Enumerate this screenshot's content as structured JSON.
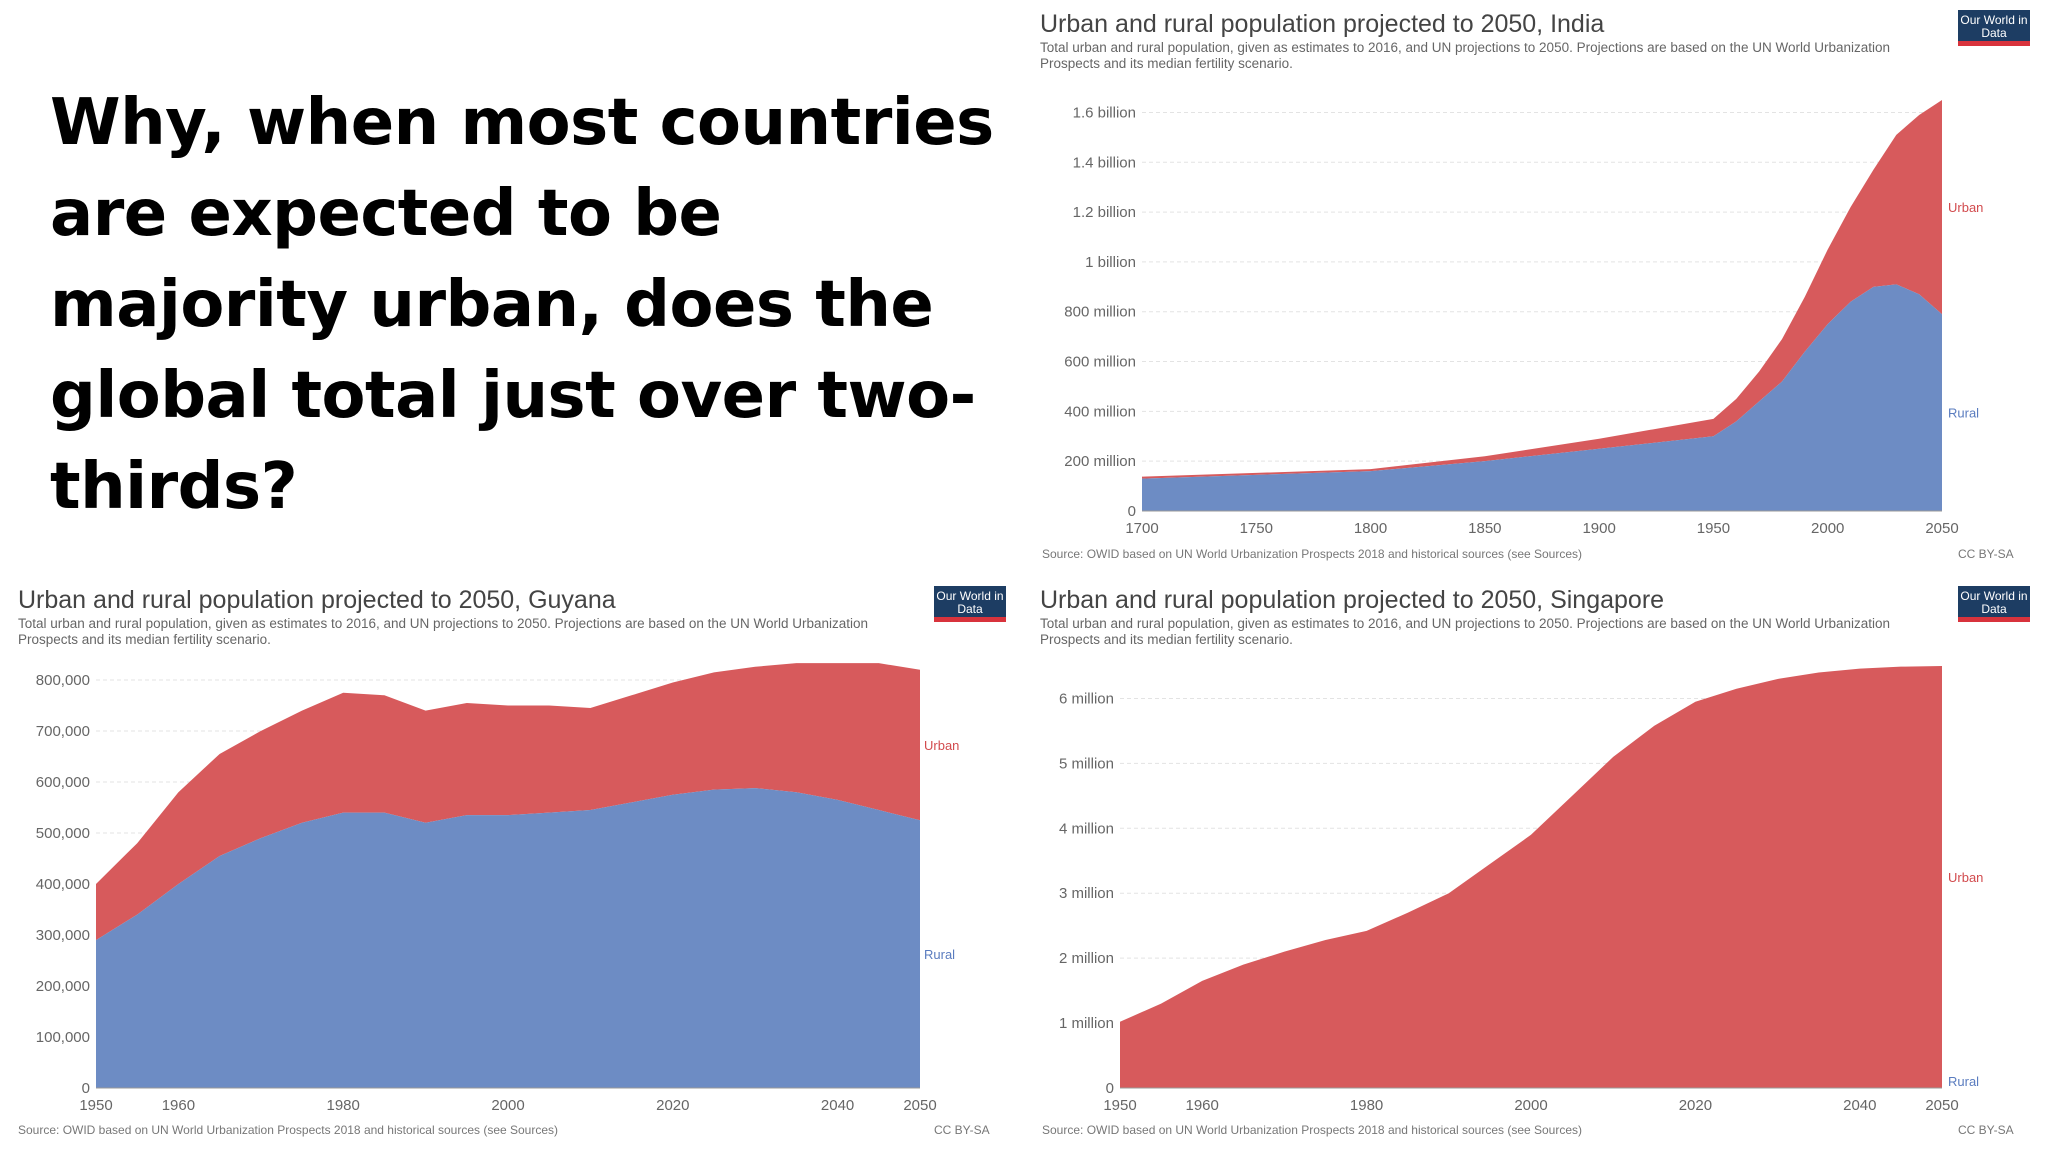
{
  "question": "Why, when most countries are expected to be majority urban, does the global total just over two-thirds?",
  "colors": {
    "urban": "#d75a5c",
    "rural": "#6d8cc4",
    "grid": "#e3e3e3",
    "axis": "#666666",
    "label_urban": "#d24b4e",
    "label_rural": "#5a7cbf"
  },
  "chart_data": [
    {
      "type": "area",
      "stacked": true,
      "country": "India",
      "title": "Urban and rural population projected to 2050, India",
      "subtitle": "Total urban and rural population, given as estimates to 2016, and UN projections to 2050. Projections are based on the UN World Urbanization Prospects and its median fertility scenario.",
      "logo": "Our World in Data",
      "source": "Source: OWID based on UN World Urbanization Prospects 2018 and historical sources (see Sources)",
      "license": "CC BY-SA",
      "xlim": [
        1700,
        2050
      ],
      "ylim": [
        0,
        1650000000
      ],
      "x_ticks": [
        1700,
        1750,
        1800,
        1850,
        1900,
        1950,
        2000,
        2050
      ],
      "y_ticks": [
        {
          "value": 0,
          "label": "0"
        },
        {
          "value": 200000000,
          "label": "200 million"
        },
        {
          "value": 400000000,
          "label": "400 million"
        },
        {
          "value": 600000000,
          "label": "600 million"
        },
        {
          "value": 800000000,
          "label": "800 million"
        },
        {
          "value": 1000000000,
          "label": "1 billion"
        },
        {
          "value": 1200000000,
          "label": "1.2 billion"
        },
        {
          "value": 1400000000,
          "label": "1.4 billion"
        },
        {
          "value": 1600000000,
          "label": "1.6 billion"
        }
      ],
      "x": [
        1700,
        1750,
        1800,
        1850,
        1900,
        1950,
        1960,
        1970,
        1980,
        1990,
        2000,
        2010,
        2020,
        2030,
        2040,
        2050
      ],
      "series": [
        {
          "name": "Rural",
          "values": [
            130000000,
            145000000,
            160000000,
            200000000,
            250000000,
            300000000,
            360000000,
            440000000,
            520000000,
            640000000,
            750000000,
            840000000,
            900000000,
            910000000,
            870000000,
            790000000
          ]
        },
        {
          "name": "Urban",
          "values": [
            8000000,
            8000000,
            8000000,
            20000000,
            40000000,
            70000000,
            90000000,
            120000000,
            170000000,
            220000000,
            300000000,
            380000000,
            470000000,
            600000000,
            720000000,
            860000000
          ]
        }
      ],
      "labels": {
        "urban": "Urban",
        "rural": "Rural"
      }
    },
    {
      "type": "area",
      "stacked": true,
      "country": "Guyana",
      "title": "Urban and rural population projected to 2050, Guyana",
      "subtitle": "Total urban and rural population, given as estimates to 2016, and UN projections to 2050. Projections are based on the UN World Urbanization Prospects and its median fertility scenario.",
      "logo": "Our World in Data",
      "source": "Source: OWID based on UN World Urbanization Prospects 2018 and historical sources (see Sources)",
      "license": "CC BY-SA",
      "xlim": [
        1950,
        2050
      ],
      "ylim": [
        0,
        800000
      ],
      "x_ticks": [
        1950,
        1960,
        1980,
        2000,
        2020,
        2040,
        2050
      ],
      "y_ticks": [
        {
          "value": 0,
          "label": "0"
        },
        {
          "value": 100000,
          "label": "100,000"
        },
        {
          "value": 200000,
          "label": "200,000"
        },
        {
          "value": 300000,
          "label": "300,000"
        },
        {
          "value": 400000,
          "label": "400,000"
        },
        {
          "value": 500000,
          "label": "500,000"
        },
        {
          "value": 600000,
          "label": "600,000"
        },
        {
          "value": 700000,
          "label": "700,000"
        },
        {
          "value": 800000,
          "label": "800,000"
        }
      ],
      "x": [
        1950,
        1955,
        1960,
        1965,
        1970,
        1975,
        1980,
        1985,
        1990,
        1995,
        2000,
        2005,
        2010,
        2015,
        2020,
        2025,
        2030,
        2035,
        2040,
        2045,
        2050
      ],
      "series": [
        {
          "name": "Rural",
          "values": [
            290000,
            340000,
            400000,
            455000,
            490000,
            520000,
            540000,
            540000,
            520000,
            535000,
            535000,
            540000,
            545000,
            560000,
            575000,
            585000,
            588000,
            580000,
            565000,
            545000,
            525000
          ]
        },
        {
          "name": "Urban",
          "values": [
            110000,
            140000,
            180000,
            200000,
            210000,
            220000,
            235000,
            230000,
            220000,
            220000,
            215000,
            210000,
            200000,
            210000,
            220000,
            230000,
            238000,
            253000,
            268000,
            288000,
            295000
          ]
        }
      ],
      "labels": {
        "urban": "Urban",
        "rural": "Rural"
      }
    },
    {
      "type": "area",
      "stacked": true,
      "country": "Singapore",
      "title": "Urban and rural population projected to 2050, Singapore",
      "subtitle": "Total urban and rural population, given as estimates to 2016, and UN projections to 2050. Projections are based on the UN World Urbanization Prospects and its median fertility scenario.",
      "logo": "Our World in Data",
      "source": "Source: OWID based on UN World Urbanization Prospects 2018 and historical sources (see Sources)",
      "license": "CC BY-SA",
      "xlim": [
        1950,
        2050
      ],
      "ylim": [
        0,
        6500000
      ],
      "x_ticks": [
        1950,
        1960,
        1980,
        2000,
        2020,
        2040,
        2050
      ],
      "y_ticks": [
        {
          "value": 0,
          "label": "0"
        },
        {
          "value": 1000000,
          "label": "1 million"
        },
        {
          "value": 2000000,
          "label": "2 million"
        },
        {
          "value": 3000000,
          "label": "3 million"
        },
        {
          "value": 4000000,
          "label": "4 million"
        },
        {
          "value": 5000000,
          "label": "5 million"
        },
        {
          "value": 6000000,
          "label": "6 million"
        }
      ],
      "x": [
        1950,
        1955,
        1960,
        1965,
        1970,
        1975,
        1980,
        1985,
        1990,
        1995,
        2000,
        2005,
        2010,
        2015,
        2020,
        2025,
        2030,
        2035,
        2040,
        2045,
        2050
      ],
      "series": [
        {
          "name": "Rural",
          "values": [
            0,
            0,
            0,
            0,
            0,
            0,
            0,
            0,
            0,
            0,
            0,
            0,
            0,
            0,
            0,
            0,
            0,
            0,
            0,
            0,
            0
          ]
        },
        {
          "name": "Urban",
          "values": [
            1020000,
            1300000,
            1650000,
            1900000,
            2100000,
            2280000,
            2420000,
            2700000,
            3000000,
            3450000,
            3900000,
            4500000,
            5100000,
            5580000,
            5950000,
            6150000,
            6300000,
            6400000,
            6460000,
            6490000,
            6500000
          ]
        }
      ],
      "labels": {
        "urban": "Urban",
        "rural": "Rural"
      }
    }
  ]
}
